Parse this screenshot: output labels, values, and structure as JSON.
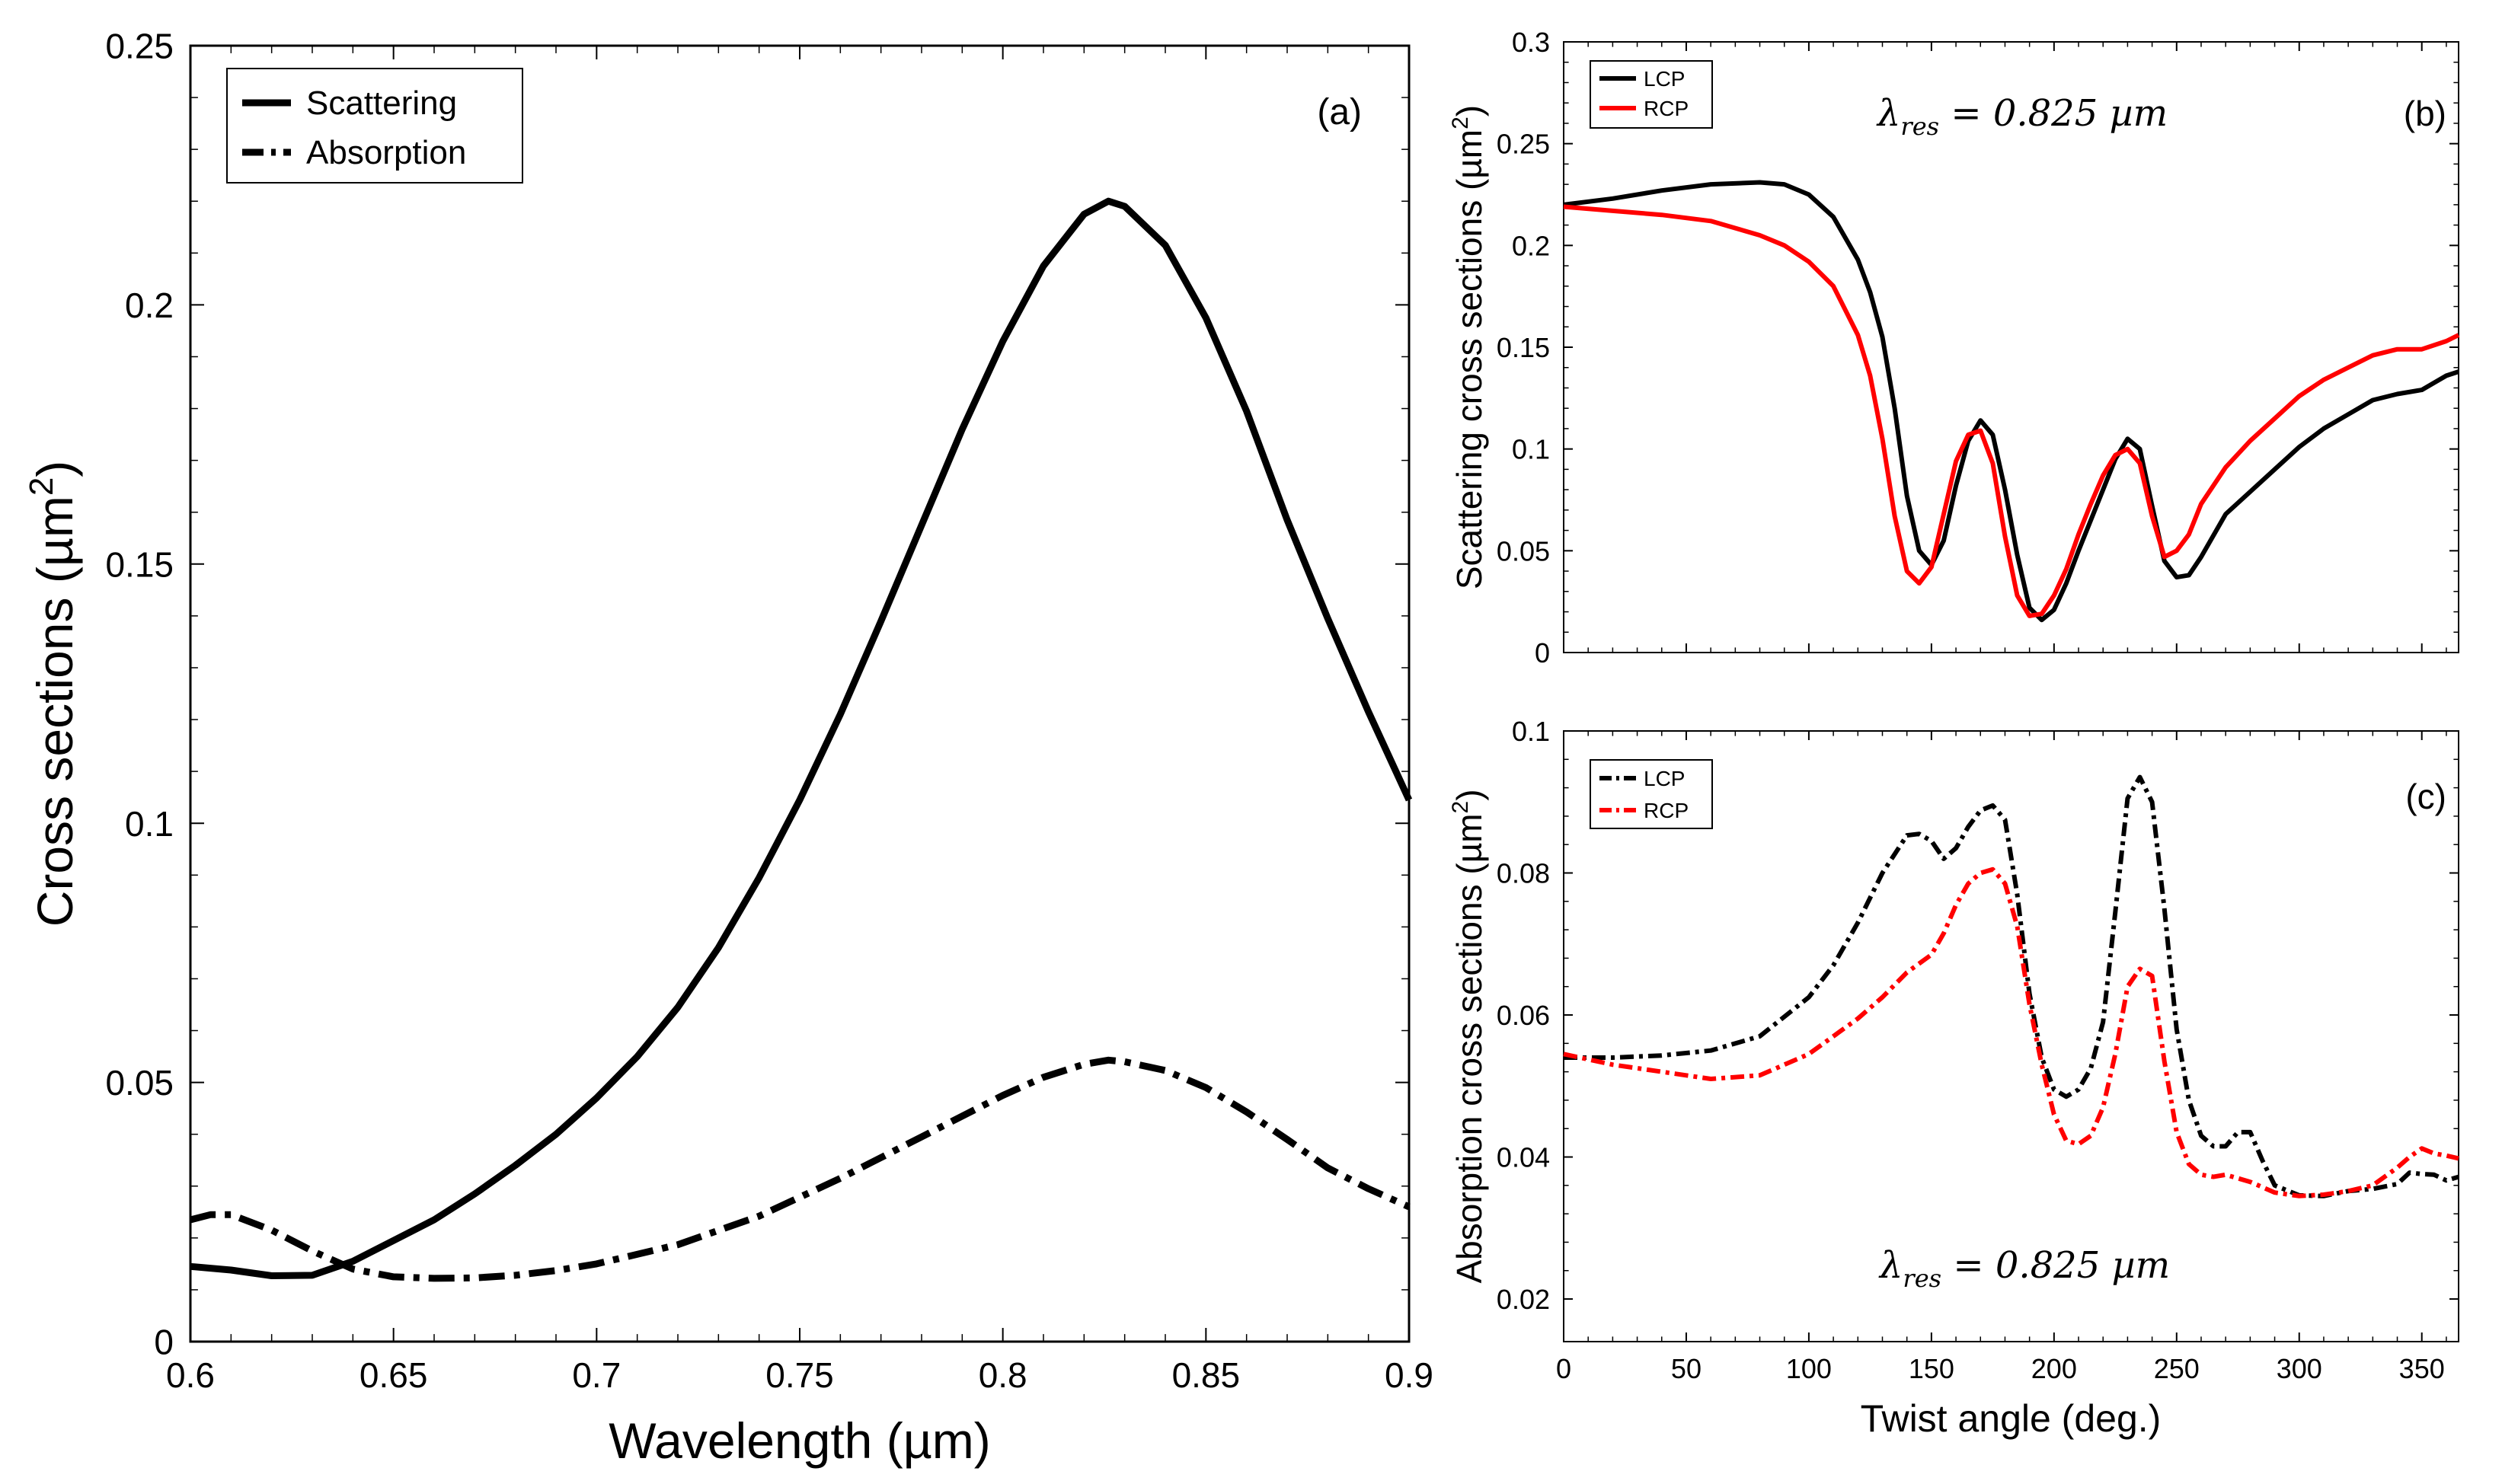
{
  "chart_data": [
    {
      "id": "a",
      "type": "line",
      "panel_label": "(a)",
      "xlabel": "Wavelength (µm)",
      "ylabel_main": "Cross sections (µm",
      "ylabel_sup": "2",
      "ylabel_close": ")",
      "xlim": [
        0.6,
        0.9
      ],
      "ylim": [
        0,
        0.25
      ],
      "xticks": [
        0.6,
        0.65,
        0.7,
        0.75,
        0.8,
        0.85,
        0.9
      ],
      "xtick_labels": [
        "0.6",
        "0.65",
        "0.7",
        "0.75",
        "0.8",
        "0.85",
        "0.9"
      ],
      "yticks": [
        0,
        0.05,
        0.1,
        0.15,
        0.2,
        0.25
      ],
      "ytick_labels": [
        "0",
        "0.05",
        "0.1",
        "0.15",
        "0.2",
        "0.25"
      ],
      "legend_position": "top-left",
      "series": [
        {
          "name": "Scattering",
          "style": "solid",
          "color": "#000000",
          "x": [
            0.6,
            0.61,
            0.62,
            0.63,
            0.64,
            0.65,
            0.66,
            0.67,
            0.68,
            0.69,
            0.7,
            0.71,
            0.72,
            0.73,
            0.74,
            0.75,
            0.76,
            0.77,
            0.78,
            0.79,
            0.8,
            0.81,
            0.82,
            0.826,
            0.83,
            0.84,
            0.85,
            0.86,
            0.87,
            0.88,
            0.89,
            0.9
          ],
          "values": [
            0.0145,
            0.0138,
            0.0127,
            0.0128,
            0.0155,
            0.0195,
            0.0235,
            0.0285,
            0.034,
            0.04,
            0.047,
            0.055,
            0.0645,
            0.076,
            0.0895,
            0.1045,
            0.121,
            0.139,
            0.1575,
            0.176,
            0.193,
            0.2075,
            0.2175,
            0.22,
            0.219,
            0.2115,
            0.1975,
            0.1795,
            0.1585,
            0.1395,
            0.1215,
            0.1045
          ]
        },
        {
          "name": "Absorption",
          "style": "dash-dot",
          "color": "#000000",
          "x": [
            0.6,
            0.605,
            0.61,
            0.62,
            0.63,
            0.64,
            0.65,
            0.66,
            0.67,
            0.68,
            0.69,
            0.7,
            0.72,
            0.74,
            0.76,
            0.78,
            0.8,
            0.81,
            0.82,
            0.826,
            0.83,
            0.84,
            0.85,
            0.86,
            0.87,
            0.88,
            0.89,
            0.9
          ],
          "values": [
            0.0235,
            0.0245,
            0.0245,
            0.0215,
            0.0175,
            0.014,
            0.0125,
            0.0122,
            0.0123,
            0.0128,
            0.0137,
            0.015,
            0.0187,
            0.0242,
            0.0315,
            0.0395,
            0.0475,
            0.051,
            0.0535,
            0.0543,
            0.054,
            0.0523,
            0.049,
            0.0443,
            0.039,
            0.0335,
            0.0295,
            0.026
          ]
        }
      ]
    },
    {
      "id": "b",
      "type": "line",
      "panel_label": "(b)",
      "annotation": "λres = 0.825 µm",
      "annotation_lambda": "λ",
      "annotation_sub": "res",
      "annotation_rest": " = 0.825 µm",
      "xlabel": "",
      "ylabel_main": "Scattering cross sections (µm",
      "ylabel_sup": "2",
      "ylabel_close": ")",
      "xlim": [
        0,
        365
      ],
      "ylim": [
        0,
        0.3
      ],
      "xticks": [
        0,
        50,
        100,
        150,
        200,
        250,
        300,
        350
      ],
      "xtick_labels": [],
      "yticks": [
        0,
        0.05,
        0.1,
        0.15,
        0.2,
        0.25,
        0.3
      ],
      "ytick_labels": [
        "0",
        "0.05",
        "0.1",
        "0.15",
        "0.2",
        "0.25",
        "0.3"
      ],
      "legend_position": "top-left",
      "series": [
        {
          "name": "LCP",
          "style": "solid",
          "color": "#000000",
          "x": [
            0,
            20,
            40,
            60,
            80,
            90,
            100,
            110,
            120,
            125,
            130,
            135,
            140,
            145,
            150,
            155,
            160,
            165,
            170,
            175,
            180,
            185,
            190,
            195,
            200,
            205,
            210,
            215,
            220,
            225,
            230,
            235,
            240,
            245,
            250,
            255,
            260,
            270,
            280,
            290,
            300,
            310,
            320,
            330,
            340,
            350,
            360,
            365
          ],
          "values": [
            0.22,
            0.223,
            0.227,
            0.23,
            0.231,
            0.23,
            0.225,
            0.214,
            0.193,
            0.177,
            0.155,
            0.12,
            0.077,
            0.05,
            0.043,
            0.055,
            0.082,
            0.104,
            0.114,
            0.107,
            0.08,
            0.048,
            0.022,
            0.016,
            0.021,
            0.034,
            0.05,
            0.065,
            0.08,
            0.095,
            0.105,
            0.1,
            0.072,
            0.045,
            0.037,
            0.038,
            0.047,
            0.068,
            0.079,
            0.09,
            0.101,
            0.11,
            0.117,
            0.124,
            0.127,
            0.129,
            0.136,
            0.138
          ]
        },
        {
          "name": "RCP",
          "style": "solid",
          "color": "#ff0000",
          "x": [
            0,
            20,
            40,
            60,
            80,
            90,
            100,
            110,
            120,
            125,
            130,
            135,
            140,
            145,
            150,
            155,
            160,
            165,
            170,
            175,
            180,
            185,
            190,
            195,
            200,
            205,
            210,
            215,
            220,
            225,
            230,
            235,
            240,
            245,
            250,
            255,
            260,
            270,
            280,
            290,
            300,
            310,
            320,
            330,
            340,
            350,
            360,
            365
          ],
          "values": [
            0.219,
            0.217,
            0.215,
            0.212,
            0.205,
            0.2,
            0.192,
            0.18,
            0.156,
            0.136,
            0.105,
            0.067,
            0.04,
            0.034,
            0.042,
            0.068,
            0.094,
            0.107,
            0.109,
            0.093,
            0.057,
            0.028,
            0.018,
            0.019,
            0.028,
            0.041,
            0.058,
            0.073,
            0.087,
            0.097,
            0.1,
            0.093,
            0.067,
            0.047,
            0.05,
            0.058,
            0.073,
            0.091,
            0.104,
            0.115,
            0.126,
            0.134,
            0.14,
            0.146,
            0.149,
            0.149,
            0.153,
            0.156
          ]
        }
      ]
    },
    {
      "id": "c",
      "type": "line",
      "panel_label": "(c)",
      "annotation": "λres = 0.825 µm",
      "annotation_lambda": "λ",
      "annotation_sub": "res",
      "annotation_rest": " = 0.825 µm",
      "xlabel": "Twist angle (deg.)",
      "ylabel_main": "Absorption cross sections (µm",
      "ylabel_sup": "2",
      "ylabel_close": ")",
      "xlim": [
        0,
        365
      ],
      "ylim": [
        0.014,
        0.1
      ],
      "xticks": [
        0,
        50,
        100,
        150,
        200,
        250,
        300,
        350
      ],
      "xtick_labels": [
        "0",
        "50",
        "100",
        "150",
        "200",
        "250",
        "300",
        "350"
      ],
      "yticks": [
        0.02,
        0.04,
        0.06,
        0.08,
        0.1
      ],
      "ytick_labels": [
        "0.02",
        "0.04",
        "0.06",
        "0.08",
        "0.1"
      ],
      "legend_position": "top-left",
      "series": [
        {
          "name": "LCP",
          "style": "dash-dot",
          "color": "#000000",
          "x": [
            0,
            20,
            40,
            60,
            80,
            100,
            110,
            120,
            130,
            140,
            145,
            150,
            155,
            160,
            165,
            170,
            175,
            180,
            185,
            190,
            195,
            200,
            205,
            210,
            215,
            220,
            225,
            230,
            235,
            240,
            245,
            250,
            255,
            260,
            265,
            270,
            275,
            280,
            285,
            290,
            300,
            310,
            320,
            330,
            340,
            345,
            350,
            355,
            360,
            365
          ],
          "values": [
            0.054,
            0.054,
            0.0543,
            0.055,
            0.057,
            0.0625,
            0.067,
            0.073,
            0.08,
            0.0853,
            0.0855,
            0.0845,
            0.082,
            0.0835,
            0.0865,
            0.0888,
            0.0895,
            0.0875,
            0.077,
            0.063,
            0.054,
            0.0495,
            0.0485,
            0.0495,
            0.0525,
            0.059,
            0.0745,
            0.0905,
            0.0935,
            0.09,
            0.075,
            0.058,
            0.048,
            0.043,
            0.0415,
            0.0415,
            0.0435,
            0.0435,
            0.0395,
            0.036,
            0.0346,
            0.0345,
            0.0352,
            0.0355,
            0.0362,
            0.0378,
            0.0376,
            0.0375,
            0.0367,
            0.0372
          ]
        },
        {
          "name": "RCP",
          "style": "dash-dot",
          "color": "#ff0000",
          "x": [
            0,
            20,
            40,
            60,
            80,
            100,
            120,
            130,
            140,
            150,
            155,
            160,
            165,
            170,
            175,
            180,
            185,
            190,
            195,
            200,
            205,
            210,
            215,
            220,
            225,
            230,
            235,
            240,
            245,
            250,
            255,
            260,
            265,
            270,
            280,
            290,
            300,
            310,
            320,
            330,
            340,
            345,
            350,
            355,
            360,
            365
          ],
          "values": [
            0.0545,
            0.053,
            0.052,
            0.051,
            0.0515,
            0.0545,
            0.0595,
            0.0625,
            0.066,
            0.0685,
            0.0715,
            0.0755,
            0.0785,
            0.08,
            0.0805,
            0.0785,
            0.0725,
            0.0615,
            0.053,
            0.046,
            0.0423,
            0.0418,
            0.043,
            0.047,
            0.0545,
            0.064,
            0.0665,
            0.0655,
            0.0535,
            0.0435,
            0.039,
            0.0375,
            0.0372,
            0.0375,
            0.0365,
            0.035,
            0.0345,
            0.0347,
            0.0352,
            0.036,
            0.0385,
            0.04,
            0.0412,
            0.0405,
            0.0402,
            0.0398
          ]
        }
      ]
    }
  ]
}
